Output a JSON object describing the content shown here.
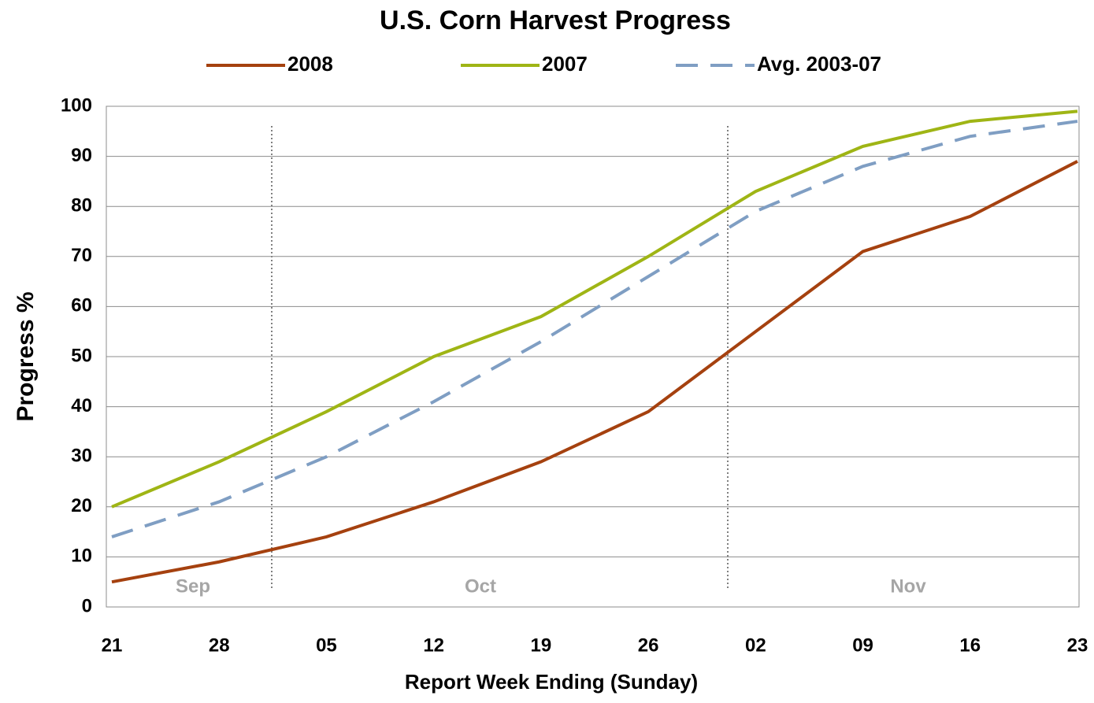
{
  "chart_data": {
    "type": "line",
    "title": "U.S. Corn Harvest Progress",
    "x_label": "Report Week Ending (Sunday)",
    "y_label": "Progress %",
    "categories": [
      "21",
      "28",
      "05",
      "12",
      "19",
      "26",
      "02",
      "09",
      "16",
      "23"
    ],
    "annotations": [
      "Sep",
      "Oct",
      "Nov"
    ],
    "series": [
      {
        "name": "2008",
        "color": "#a5410f",
        "dash": false,
        "values": [
          5,
          9,
          14,
          21,
          29,
          39,
          55,
          71,
          78,
          89
        ]
      },
      {
        "name": "2007",
        "color": "#9fb515",
        "dash": false,
        "values": [
          20,
          29,
          39,
          50,
          58,
          70,
          83,
          92,
          97,
          99
        ]
      },
      {
        "name": "Avg. 2003-07",
        "color": "#7f9ec3",
        "dash": true,
        "values": [
          14,
          21,
          30,
          41,
          53,
          66,
          79,
          88,
          94,
          97
        ]
      }
    ],
    "ylim": [
      0,
      100
    ],
    "yticks": [
      0,
      10,
      20,
      30,
      40,
      50,
      60,
      70,
      80,
      90,
      100
    ],
    "grid": true
  }
}
